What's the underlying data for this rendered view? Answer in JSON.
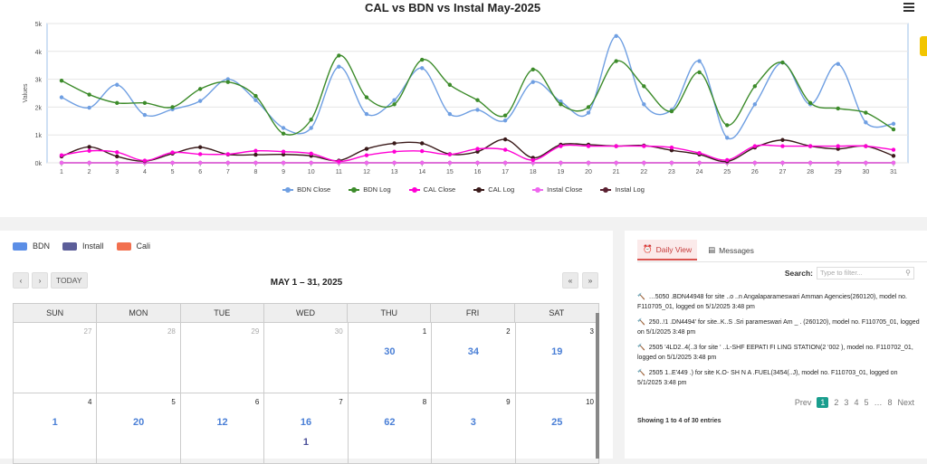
{
  "chart": {
    "title": "CAL vs BDN vs Instal May-2025",
    "legend": [
      {
        "name": "BDN Close",
        "color": "#6f9fe2"
      },
      {
        "name": "BDN Log",
        "color": "#3c8b2a"
      },
      {
        "name": "CAL Close",
        "color": "#ff00d4"
      },
      {
        "name": "CAL Log",
        "color": "#3a1a1a"
      },
      {
        "name": "Instal Close",
        "color": "#ee66ee"
      },
      {
        "name": "Instal Log",
        "color": "#5a2030"
      }
    ]
  },
  "chart_data": {
    "type": "line",
    "title": "CAL vs BDN vs Instal May-2025",
    "ylabel": "Values",
    "xlabel": "",
    "ylim": [
      0,
      5000
    ],
    "y_ticks": [
      "0k",
      "1k",
      "2k",
      "3k",
      "4k",
      "5k"
    ],
    "x": [
      1,
      2,
      3,
      4,
      5,
      6,
      7,
      8,
      9,
      10,
      11,
      12,
      13,
      14,
      15,
      16,
      17,
      18,
      19,
      20,
      21,
      22,
      23,
      24,
      25,
      26,
      27,
      28,
      29,
      30,
      31
    ],
    "series": [
      {
        "name": "BDN Close",
        "values": [
          2350,
          1980,
          2800,
          1720,
          1920,
          2220,
          3000,
          2250,
          1250,
          1250,
          3450,
          1750,
          2250,
          3400,
          1750,
          1900,
          1520,
          2900,
          2200,
          1800,
          4550,
          2100,
          1900,
          3650,
          900,
          2100,
          3600,
          2100,
          3550,
          1450,
          1400
        ]
      },
      {
        "name": "BDN Log",
        "values": [
          2950,
          2450,
          2150,
          2150,
          2000,
          2650,
          2900,
          2400,
          1050,
          1550,
          3850,
          2350,
          2100,
          3700,
          2800,
          2250,
          1700,
          3350,
          2100,
          2000,
          3650,
          2750,
          1850,
          3250,
          1350,
          2750,
          3600,
          2150,
          1950,
          1800,
          1200
        ]
      },
      {
        "name": "CAL Close",
        "values": [
          270,
          430,
          380,
          80,
          370,
          310,
          310,
          430,
          400,
          330,
          50,
          270,
          400,
          420,
          300,
          500,
          470,
          100,
          600,
          600,
          600,
          600,
          550,
          350,
          100,
          600,
          600,
          600,
          600,
          600,
          470
        ]
      },
      {
        "name": "CAL Log",
        "values": [
          230,
          570,
          230,
          60,
          330,
          560,
          300,
          290,
          300,
          250,
          80,
          500,
          700,
          700,
          310,
          400,
          840,
          180,
          650,
          650,
          600,
          620,
          450,
          300,
          50,
          550,
          820,
          600,
          500,
          600,
          250
        ]
      },
      {
        "name": "Instal Close",
        "values": [
          0,
          0,
          0,
          0,
          0,
          0,
          0,
          0,
          0,
          0,
          0,
          0,
          0,
          0,
          0,
          0,
          0,
          0,
          0,
          0,
          0,
          0,
          0,
          0,
          0,
          0,
          0,
          0,
          0,
          0,
          0
        ]
      },
      {
        "name": "Instal Log",
        "values": [
          0,
          0,
          0,
          0,
          0,
          0,
          0,
          0,
          0,
          0,
          0,
          0,
          0,
          0,
          0,
          0,
          0,
          0,
          0,
          0,
          0,
          0,
          0,
          0,
          0,
          0,
          0,
          0,
          0,
          0,
          0
        ]
      }
    ],
    "grid": true,
    "legend_position": "bottom"
  },
  "calendar": {
    "legend": [
      {
        "label": "BDN",
        "color": "#5b8ee6"
      },
      {
        "label": "Install",
        "color": "#5c5e99"
      },
      {
        "label": "Cali",
        "color": "#f2704f"
      }
    ],
    "today_label": "TODAY",
    "prev_label": "‹",
    "next_label": "›",
    "prev_year_label": "«",
    "next_year_label": "»",
    "title": "MAY 1 – 31, 2025",
    "weekdays": [
      "SUN",
      "MON",
      "TUE",
      "WED",
      "THU",
      "FRI",
      "SAT"
    ],
    "weeks": [
      [
        {
          "d": "27",
          "o": true,
          "e": []
        },
        {
          "d": "28",
          "o": true,
          "e": []
        },
        {
          "d": "29",
          "o": true,
          "e": []
        },
        {
          "d": "30",
          "o": true,
          "e": []
        },
        {
          "d": "1",
          "e": [
            "30"
          ]
        },
        {
          "d": "2",
          "e": [
            "34"
          ]
        },
        {
          "d": "3",
          "e": [
            "19"
          ]
        }
      ],
      [
        {
          "d": "4",
          "e": [
            "1"
          ]
        },
        {
          "d": "5",
          "e": [
            "20"
          ]
        },
        {
          "d": "6",
          "e": [
            "12"
          ]
        },
        {
          "d": "7",
          "e": [
            "16",
            "1"
          ]
        },
        {
          "d": "8",
          "e": [
            "62"
          ]
        },
        {
          "d": "9",
          "e": [
            "3"
          ]
        },
        {
          "d": "10",
          "e": [
            "25"
          ]
        }
      ]
    ]
  },
  "messages": {
    "tabs": [
      {
        "label": "Daily View",
        "icon": "alarm-icon"
      },
      {
        "label": "Messages",
        "icon": "document-icon"
      }
    ],
    "search_label": "Search:",
    "search_placeholder": "Type to filter...",
    "entries": [
      "…5050 .BDN44948 for site ..o  ..n Angalaparameswari Amman Agencies(260120), model no. F110705_01, logged on 5/1/2025 3:48 pm",
      "250..!1  .DN4494'  for site..K..S .Sri       parameswari Am      _  .    (260120), model no. F110705_01, logged on 5/1/2025 3:48 pm",
      "2505  '4LD2..4(..3 for site '   ..L-SHF  EEPATI FI  LING  STATION(2  '002  ), model no. F110702_01, logged on 5/1/2025 3:48 pm",
      "2505  1..E'449   .) for site  K.O-  SH   N   A  .FUEL(3454(..J), model no. F110703_01, logged on 5/1/2025 3:48 pm"
    ],
    "pager": {
      "prev": "Prev",
      "pages": [
        "1",
        "2",
        "3",
        "4",
        "5",
        "…",
        "8"
      ],
      "current": "1",
      "next": "Next"
    },
    "showing": "Showing 1 to 4 of 30 entries"
  }
}
